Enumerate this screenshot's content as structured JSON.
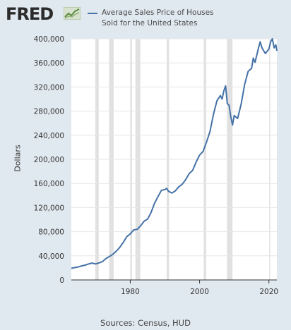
{
  "header": {
    "logo_text": "FRED",
    "logo_icon": "line-chart-icon",
    "legend_label_line1": "Average Sales Price of Houses",
    "legend_label_line2": "Sold for the United States",
    "series_color": "#4572a7"
  },
  "footer": {
    "source": "Sources: Census, HUD"
  },
  "chart_data": {
    "type": "line",
    "ylabel": "Dollars",
    "xlabel": "",
    "ylim": [
      0,
      400000
    ],
    "xlim": [
      1963,
      2022.3
    ],
    "yticks": [
      0,
      40000,
      80000,
      120000,
      160000,
      200000,
      240000,
      280000,
      320000,
      360000,
      400000
    ],
    "ytick_labels": [
      "0",
      "40,000",
      "80,000",
      "120,000",
      "160,000",
      "200,000",
      "240,000",
      "280,000",
      "320,000",
      "360,000",
      "400,000"
    ],
    "xticks": [
      1980,
      2000,
      2020
    ],
    "xtick_labels": [
      "1980",
      "2000",
      "2020"
    ],
    "grid": "horizontal",
    "recessions": [
      [
        1969.9,
        1970.9
      ],
      [
        1973.9,
        1975.2
      ],
      [
        1980.0,
        1980.5
      ],
      [
        1981.5,
        1982.9
      ],
      [
        1990.5,
        1991.2
      ],
      [
        2001.2,
        2001.9
      ],
      [
        2007.9,
        2009.5
      ],
      [
        2020.1,
        2020.4
      ]
    ],
    "series": [
      {
        "name": "Average Sales Price of Houses Sold for the United States",
        "x": [
          1963,
          1964,
          1965,
          1966,
          1967,
          1968,
          1969,
          1970,
          1971,
          1972,
          1973,
          1974,
          1975,
          1976,
          1977,
          1978,
          1979,
          1980,
          1981,
          1982,
          1983,
          1984,
          1985,
          1986,
          1987,
          1988,
          1989,
          1990,
          1990.5,
          1991,
          1992,
          1993,
          1994,
          1995,
          1996,
          1997,
          1998,
          1999,
          2000,
          2001,
          2002,
          2003,
          2004,
          2005,
          2006,
          2006.5,
          2007,
          2007.5,
          2008,
          2008.5,
          2009,
          2009.5,
          2010,
          2010.5,
          2011,
          2012,
          2013,
          2014,
          2015,
          2015.5,
          2016,
          2017,
          2017.5,
          2018,
          2018.5,
          2019,
          2020,
          2020.5,
          2021,
          2021.5,
          2022,
          2022.3
        ],
        "y": [
          19300,
          20500,
          21500,
          23300,
          24600,
          26600,
          27900,
          26600,
          28300,
          30500,
          35500,
          38900,
          42600,
          48000,
          54200,
          62500,
          71800,
          76400,
          83000,
          83900,
          89800,
          97600,
          100800,
          111900,
          127200,
          138300,
          148800,
          149800,
          152000,
          147200,
          144100,
          147700,
          154500,
          158700,
          166400,
          176200,
          181900,
          195600,
          207000,
          213200,
          228700,
          246300,
          274500,
          297000,
          305900,
          300000,
          313600,
          322000,
          292600,
          290000,
          270900,
          257000,
          272900,
          270000,
          267900,
          292200,
          324500,
          345800,
          351000,
          368000,
          360900,
          384900,
          395000,
          385000,
          380000,
          375500,
          383000,
          395000,
          400000,
          385000,
          390000,
          380000
        ]
      }
    ]
  }
}
